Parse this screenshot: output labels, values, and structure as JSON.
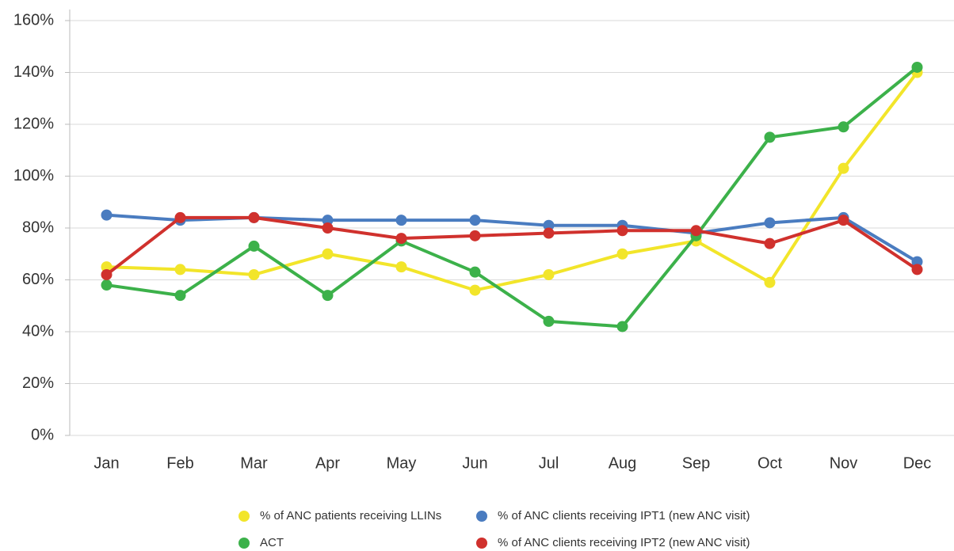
{
  "chart_data": {
    "type": "line",
    "categories": [
      "Jan",
      "Feb",
      "Mar",
      "Apr",
      "May",
      "Jun",
      "Jul",
      "Aug",
      "Sep",
      "Oct",
      "Nov",
      "Dec"
    ],
    "series": [
      {
        "name": "% of ANC patients receiving LLINs",
        "color": "#f2e52a",
        "values": [
          65,
          64,
          62,
          70,
          65,
          56,
          62,
          70,
          75,
          59,
          103,
          140
        ]
      },
      {
        "name": "% of ANC clients receiving IPT1 (new ANC visit)",
        "color": "#4a7cc0",
        "values": [
          85,
          83,
          84,
          83,
          83,
          83,
          81,
          81,
          78,
          82,
          84,
          67
        ]
      },
      {
        "name": "ACT",
        "color": "#3cb14a",
        "values": [
          58,
          54,
          73,
          54,
          75,
          63,
          44,
          42,
          77,
          115,
          119,
          142
        ]
      },
      {
        "name": "% of ANC clients receiving IPT2 (new ANC visit)",
        "color": "#d0312d",
        "values": [
          62,
          84,
          84,
          80,
          76,
          77,
          78,
          79,
          79,
          74,
          83,
          64
        ]
      }
    ],
    "ylim": [
      0,
      160
    ],
    "yticks": [
      {
        "value": 0,
        "label": "0%"
      },
      {
        "value": 20,
        "label": "20%"
      },
      {
        "value": 40,
        "label": "40%"
      },
      {
        "value": 60,
        "label": "60%"
      },
      {
        "value": 80,
        "label": "80%"
      },
      {
        "value": 100,
        "label": "100%"
      },
      {
        "value": 120,
        "label": "120%"
      },
      {
        "value": 140,
        "label": "140%"
      },
      {
        "value": 160,
        "label": "160%"
      }
    ],
    "grid": true
  }
}
